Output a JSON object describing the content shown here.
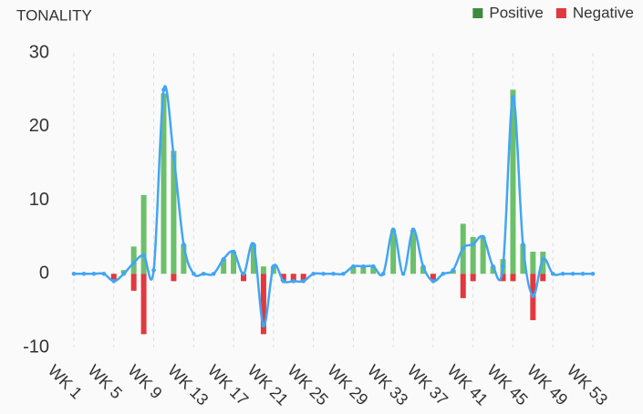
{
  "chart_data": {
    "type": "bar",
    "title": "TONALITY",
    "categories": [
      "WK 1",
      null,
      null,
      null,
      "WK 5",
      null,
      null,
      null,
      "WK 9",
      null,
      null,
      null,
      "WK 13",
      null,
      null,
      null,
      "WK 17",
      null,
      null,
      null,
      "WK 21",
      null,
      null,
      null,
      "WK 25",
      null,
      null,
      null,
      "WK 29",
      null,
      null,
      null,
      "WK 33",
      null,
      null,
      null,
      "WK 37",
      null,
      null,
      null,
      "WK 41",
      null,
      null,
      null,
      "WK 45",
      null,
      null,
      null,
      "WK 49",
      null,
      null,
      null,
      "WK 53"
    ],
    "series": [
      {
        "name": "Positive",
        "color": "#6cc06a",
        "legend_color": "#3d8b40",
        "values": [
          0,
          0,
          0,
          0,
          0,
          0.5,
          3.7,
          10.7,
          0,
          24.5,
          16.7,
          4,
          0,
          0,
          0,
          2,
          3,
          0,
          4,
          1,
          1,
          0,
          0,
          0,
          0,
          0,
          0,
          0,
          1,
          1,
          1,
          0,
          6,
          0,
          6,
          1,
          0,
          0,
          0.5,
          6.8,
          5,
          5,
          1,
          2,
          25,
          4,
          3,
          3,
          0,
          0,
          0,
          0,
          0
        ]
      },
      {
        "name": "Negative",
        "color": "#e0393e",
        "legend_color": "#e0393e",
        "values": [
          0,
          0,
          0,
          0,
          -1,
          0,
          -2.3,
          -8.2,
          0,
          0,
          -1,
          0,
          0,
          0,
          0,
          0,
          0,
          -1,
          0,
          -8.2,
          0,
          -1,
          -1,
          -1,
          0,
          0,
          0,
          0,
          0,
          0,
          0,
          0,
          0,
          0,
          0,
          0,
          -1,
          0,
          0,
          -3.3,
          -1,
          0,
          0,
          -1,
          -1,
          0,
          -6.3,
          -1,
          0,
          0,
          0,
          0,
          0
        ]
      }
    ],
    "line": {
      "color": "#42a5f5",
      "values": [
        0,
        0,
        0,
        0,
        -1,
        0,
        1.5,
        2.5,
        0.5,
        25,
        16,
        4,
        0,
        0,
        0,
        2,
        3,
        0,
        4,
        -7,
        1,
        -1,
        -1,
        -1,
        0,
        0,
        0,
        0,
        1,
        1,
        1,
        0,
        6,
        0,
        6,
        1,
        -1,
        0,
        0.5,
        3.5,
        4,
        5,
        1,
        1,
        24,
        4,
        -3,
        2,
        0,
        0,
        0,
        0,
        0
      ]
    },
    "ylim": [
      -10,
      30
    ],
    "yticks": [
      -10,
      0,
      10,
      20,
      30
    ],
    "grid": "x-dashed",
    "legend": "top-right"
  }
}
